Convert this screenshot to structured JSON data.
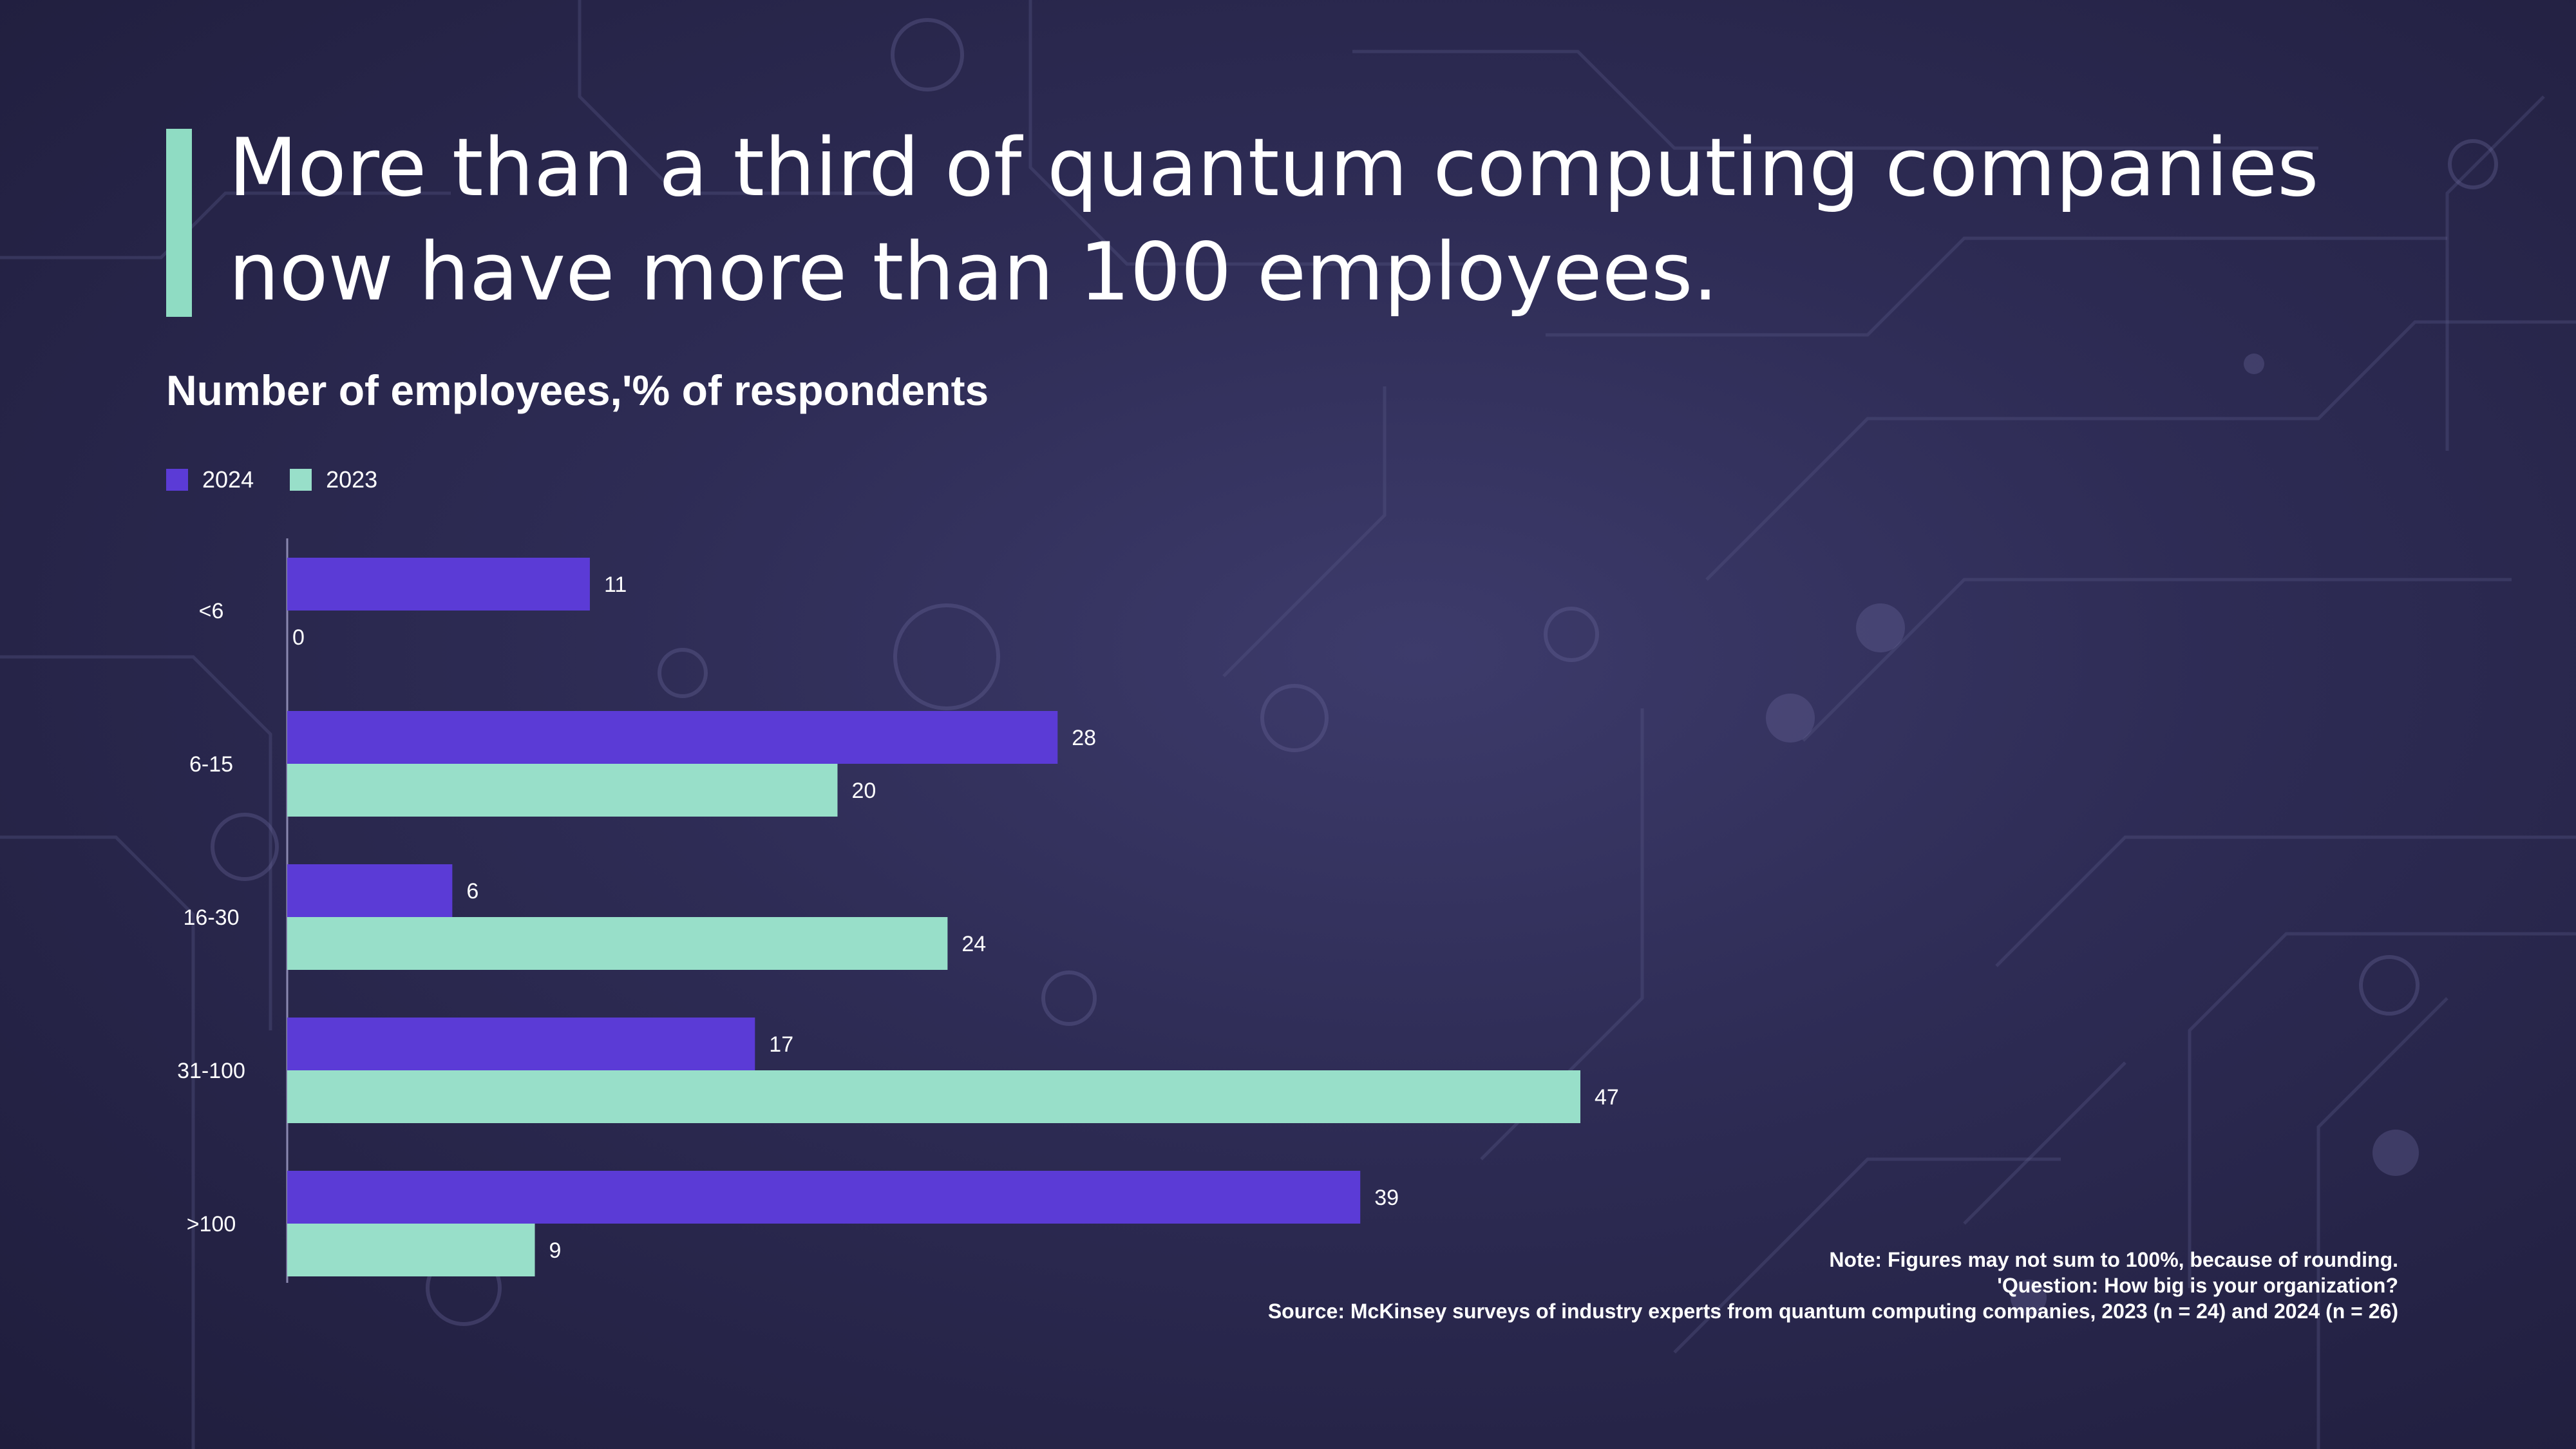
{
  "header": {
    "title_line1": "More than a third of quantum computing companies",
    "title_line2": "now have more than 100 employees."
  },
  "colors": {
    "accent": "#8fdcc3",
    "series_2024": "#5b3bd6",
    "series_2023": "#98dfc9"
  },
  "legend": {
    "items": [
      {
        "label": "2024",
        "color": "#5b3bd6"
      },
      {
        "label": "2023",
        "color": "#98dfc9"
      }
    ]
  },
  "chart_data": {
    "type": "bar",
    "orientation": "horizontal",
    "title": "Number of employees,'% of respondents",
    "categories": [
      "<6",
      "6-15",
      "16-30",
      "31-100",
      ">100"
    ],
    "series": [
      {
        "name": "2024",
        "values": [
          11,
          28,
          6,
          17,
          39
        ]
      },
      {
        "name": "2023",
        "values": [
          0,
          20,
          24,
          47,
          9
        ]
      }
    ],
    "xlim": [
      0,
      47
    ],
    "grid": false,
    "legend_position": "top-left"
  },
  "footnotes": {
    "note": "Note: Figures may not sum to 100%, because of rounding.",
    "question": "'Question: How big is your organization?",
    "source": "Source: McKinsey surveys of industry experts from quantum computing companies, 2023 (n = 24) and 2024 (n = 26)"
  }
}
